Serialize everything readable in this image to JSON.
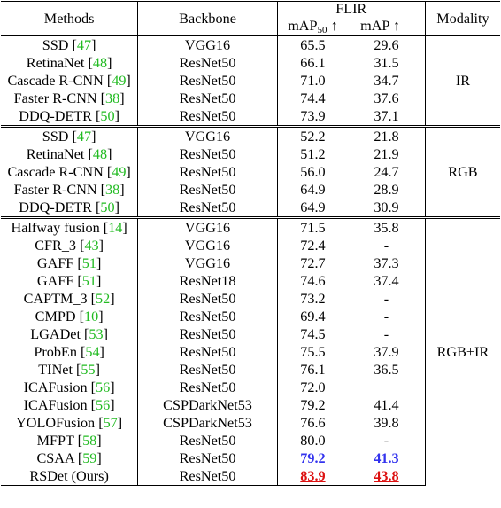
{
  "header": {
    "methods": "Methods",
    "backbone": "Backbone",
    "dataset": "FLIR",
    "map50_prefix": "mAP",
    "map50_sub": "50",
    "arrow": "↑",
    "map": "mAP",
    "modality": "Modality"
  },
  "groups": [
    {
      "modality": "IR",
      "rows": [
        {
          "method": "SSD",
          "ref": "47",
          "backbone": "VGG16",
          "map50": "65.5",
          "map": "29.6"
        },
        {
          "method": "RetinaNet",
          "ref": "48",
          "backbone": "ResNet50",
          "map50": "66.1",
          "map": "31.5"
        },
        {
          "method": "Cascade R-CNN",
          "ref": "49",
          "backbone": "ResNet50",
          "map50": "71.0",
          "map": "34.7"
        },
        {
          "method": "Faster R-CNN",
          "ref": "38",
          "backbone": "ResNet50",
          "map50": "74.4",
          "map": "37.6"
        },
        {
          "method": "DDQ-DETR",
          "ref": "50",
          "backbone": "ResNet50",
          "map50": "73.9",
          "map": "37.1"
        }
      ]
    },
    {
      "modality": "RGB",
      "rows": [
        {
          "method": "SSD",
          "ref": "47",
          "backbone": "VGG16",
          "map50": "52.2",
          "map": "21.8"
        },
        {
          "method": "RetinaNet",
          "ref": "48",
          "backbone": "ResNet50",
          "map50": "51.2",
          "map": "21.9"
        },
        {
          "method": "Cascade R-CNN",
          "ref": "49",
          "backbone": "ResNet50",
          "map50": "56.0",
          "map": "24.7"
        },
        {
          "method": "Faster R-CNN",
          "ref": "38",
          "backbone": "ResNet50",
          "map50": "64.9",
          "map": "28.9"
        },
        {
          "method": "DDQ-DETR",
          "ref": "50",
          "backbone": "ResNet50",
          "map50": "64.9",
          "map": "30.9"
        }
      ]
    },
    {
      "modality": "RGB+IR",
      "rows": [
        {
          "method": "Halfway fusion",
          "ref": "14",
          "backbone": "VGG16",
          "map50": "71.5",
          "map": "35.8"
        },
        {
          "method": "CFR_3",
          "ref": "43",
          "backbone": "VGG16",
          "map50": "72.4",
          "map": "-"
        },
        {
          "method": "GAFF",
          "ref": "51",
          "backbone": "VGG16",
          "map50": "72.7",
          "map": "37.3"
        },
        {
          "method": "GAFF",
          "ref": "51",
          "backbone": "ResNet18",
          "map50": "74.6",
          "map": "37.4"
        },
        {
          "method": "CAPTM_3",
          "ref": "52",
          "backbone": "ResNet50",
          "map50": "73.2",
          "map": "-"
        },
        {
          "method": "CMPD",
          "ref": "10",
          "backbone": "ResNet50",
          "map50": "69.4",
          "map": "-"
        },
        {
          "method": "LGADet",
          "ref": "53",
          "backbone": "ResNet50",
          "map50": "74.5",
          "map": "-"
        },
        {
          "method": "ProbEn",
          "ref": "54",
          "backbone": "ResNet50",
          "map50": "75.5",
          "map": "37.9"
        },
        {
          "method": "TINet",
          "ref": "55",
          "backbone": "ResNet50",
          "map50": "76.1",
          "map": "36.5"
        },
        {
          "method": "ICAFusion",
          "ref": "56",
          "backbone": "ResNet50",
          "map50": "72.0",
          "map": ""
        },
        {
          "method": "ICAFusion",
          "ref": "56",
          "backbone": "CSPDarkNet53",
          "map50": "79.2",
          "map": "41.4"
        },
        {
          "method": "YOLOFusion",
          "ref": "57",
          "backbone": "CSPDarkNet53",
          "map50": "76.6",
          "map": "39.8"
        },
        {
          "method": "MFPT",
          "ref": "58",
          "backbone": "ResNet50",
          "map50": "80.0",
          "map": "-"
        },
        {
          "method": "CSAA",
          "ref": "59",
          "backbone": "ResNet50",
          "map50": "79.2",
          "map": "41.3",
          "style": "blue"
        },
        {
          "method": "RSDet (Ours)",
          "ref": "",
          "backbone": "ResNet50",
          "map50": "83.9",
          "map": "43.8",
          "style": "red"
        }
      ]
    }
  ]
}
